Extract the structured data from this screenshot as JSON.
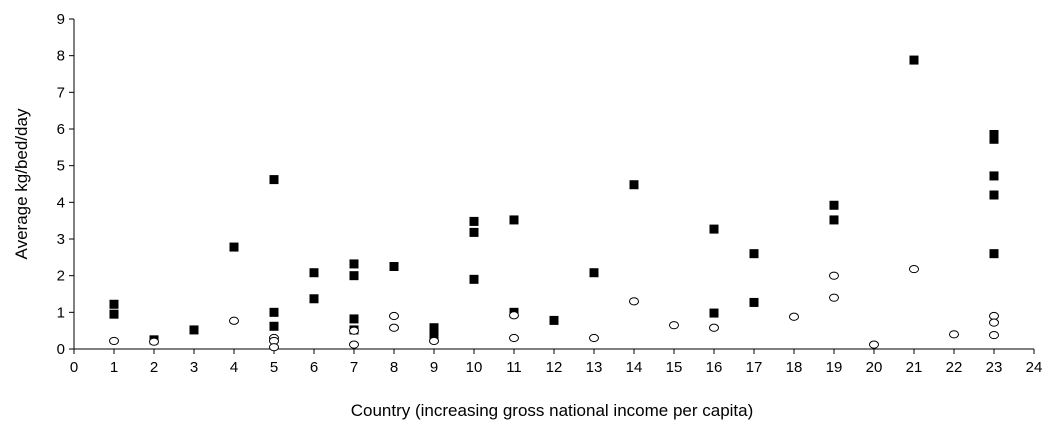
{
  "chart_data": {
    "type": "scatter",
    "title": "",
    "xlabel": "Country (increasing gross national income per capita)",
    "ylabel": "Average kg/bed/day",
    "xlim": [
      0,
      24
    ],
    "ylim": [
      0,
      9
    ],
    "xticks": [
      "0",
      "1",
      "2",
      "3",
      "4",
      "5",
      "6",
      "7",
      "8",
      "9",
      "10",
      "11",
      "12",
      "13",
      "14",
      "15",
      "16",
      "17",
      "18",
      "19",
      "20",
      "21",
      "22",
      "23",
      "24"
    ],
    "yticks": [
      "0",
      "1",
      "2",
      "3",
      "4",
      "5",
      "6",
      "7",
      "8",
      "9"
    ],
    "grid": false,
    "legend": "none",
    "series": [
      {
        "marker": "filled-square",
        "color": "#000000",
        "points": [
          [
            1,
            1.22
          ],
          [
            1,
            0.95
          ],
          [
            2,
            0.25
          ],
          [
            3,
            0.52
          ],
          [
            4,
            2.78
          ],
          [
            5,
            4.62
          ],
          [
            5,
            1.0
          ],
          [
            5,
            0.62
          ],
          [
            6,
            2.08
          ],
          [
            6,
            1.37
          ],
          [
            7,
            2.32
          ],
          [
            7,
            2.0
          ],
          [
            7,
            0.82
          ],
          [
            7,
            0.52
          ],
          [
            8,
            2.25
          ],
          [
            9,
            0.58
          ],
          [
            9,
            0.45
          ],
          [
            9,
            0.35
          ],
          [
            10,
            3.48
          ],
          [
            10,
            3.18
          ],
          [
            10,
            1.9
          ],
          [
            11,
            3.52
          ],
          [
            11,
            1.0
          ],
          [
            12,
            0.78
          ],
          [
            13,
            2.08
          ],
          [
            14,
            4.48
          ],
          [
            16,
            3.27
          ],
          [
            16,
            0.98
          ],
          [
            17,
            2.6
          ],
          [
            17,
            1.27
          ],
          [
            19,
            3.92
          ],
          [
            19,
            3.52
          ],
          [
            21,
            7.88
          ],
          [
            23,
            5.85
          ],
          [
            23,
            5.72
          ],
          [
            23,
            4.72
          ],
          [
            23,
            4.2
          ],
          [
            23,
            2.6
          ]
        ]
      },
      {
        "marker": "open-circle",
        "color": "#000000",
        "points": [
          [
            1,
            0.22
          ],
          [
            2,
            0.2
          ],
          [
            4,
            0.77
          ],
          [
            5,
            0.3
          ],
          [
            5,
            0.22
          ],
          [
            5,
            0.05
          ],
          [
            7,
            0.5
          ],
          [
            7,
            0.12
          ],
          [
            8,
            0.9
          ],
          [
            8,
            0.58
          ],
          [
            9,
            0.22
          ],
          [
            11,
            0.92
          ],
          [
            11,
            0.3
          ],
          [
            13,
            0.3
          ],
          [
            14,
            1.3
          ],
          [
            15,
            0.65
          ],
          [
            16,
            0.58
          ],
          [
            18,
            0.88
          ],
          [
            19,
            2.0
          ],
          [
            19,
            1.4
          ],
          [
            20,
            0.12
          ],
          [
            21,
            2.18
          ],
          [
            22,
            0.4
          ],
          [
            23,
            0.9
          ],
          [
            23,
            0.72
          ],
          [
            23,
            0.38
          ]
        ]
      }
    ]
  }
}
